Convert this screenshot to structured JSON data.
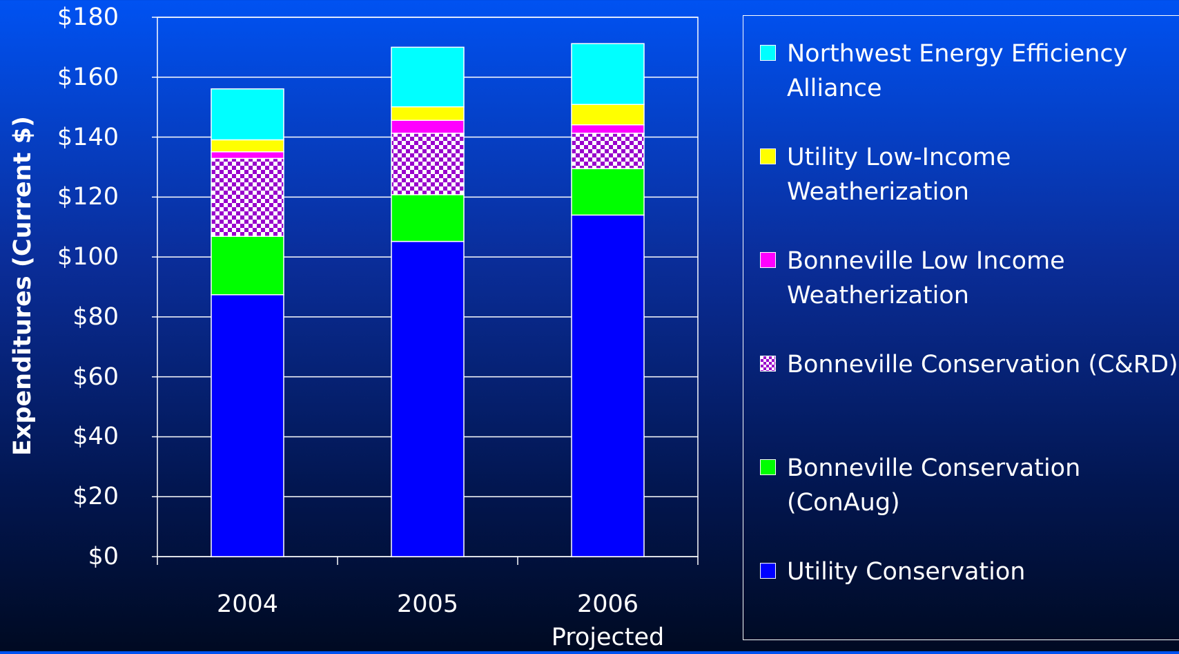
{
  "chart_data": {
    "type": "stacked_bar",
    "y_label": "Expenditures (Current $)",
    "categories": [
      "2004",
      "2005",
      "2006 Projected"
    ],
    "series": [
      {
        "name": "Utility Conservation",
        "color": "#0000ff",
        "values": [
          87.4,
          105.2,
          114
        ]
      },
      {
        "name": "Bonneville Conservation (ConAug)",
        "color": "#00ff00",
        "values": [
          19.5,
          15.6,
          15.5
        ]
      },
      {
        "name": "Bonneville Conservation (C&RD)",
        "color": "#9900cc",
        "pattern": "checker",
        "values": [
          26,
          20.5,
          11.8
        ]
      },
      {
        "name": "Bonneville Low Income Weatherization",
        "color": "#ff00ff",
        "values": [
          2.2,
          4.3,
          2.8
        ]
      },
      {
        "name": "Utility Low-Income Weatherization",
        "color": "#ffff00",
        "values": [
          4,
          4.5,
          6.8
        ]
      },
      {
        "name": "Northwest Energy Efficiency Alliance",
        "color": "#00ffff",
        "values": [
          17,
          19.9,
          20.3
        ]
      }
    ],
    "ylim": [
      0,
      180
    ],
    "yticks": [
      {
        "value": 0,
        "label": "$0"
      },
      {
        "value": 20,
        "label": "$20"
      },
      {
        "value": 40,
        "label": "$40"
      },
      {
        "value": 60,
        "label": "$60"
      },
      {
        "value": 80,
        "label": "$80"
      },
      {
        "value": 100,
        "label": "$100"
      },
      {
        "value": 120,
        "label": "$120"
      },
      {
        "value": 140,
        "label": "$140"
      },
      {
        "value": 160,
        "label": "$160"
      },
      {
        "value": 180,
        "label": "$180"
      }
    ],
    "grid": true,
    "legend": "right"
  }
}
